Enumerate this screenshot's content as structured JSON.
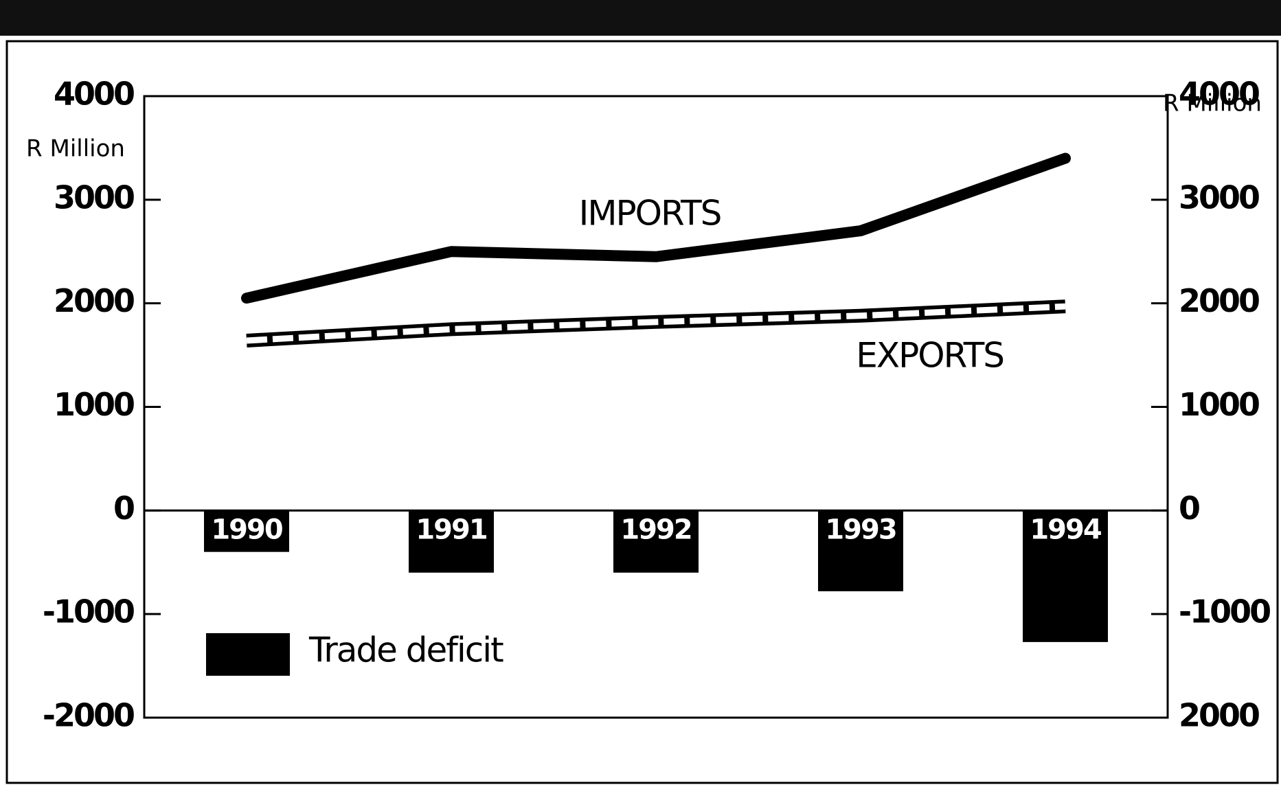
{
  "chart_data": {
    "type": "line",
    "y_label": "R Million",
    "y2_label": "R Million",
    "categories": [
      "1990",
      "1991",
      "1992",
      "1993",
      "1994"
    ],
    "series": [
      {
        "name": "IMPORTS",
        "color": "#000000",
        "values": [
          2050,
          2500,
          2450,
          2700,
          3400
        ]
      },
      {
        "name": "EXPORTS",
        "color": "#ffffff",
        "values": [
          1640,
          1750,
          1820,
          1880,
          1970
        ]
      },
      {
        "name": "Trade deficit",
        "type": "bar",
        "color": "#000000",
        "values": [
          -400,
          -600,
          -600,
          -780,
          -1270
        ]
      }
    ],
    "ylim": [
      -2000,
      4000
    ],
    "yticks": [
      -2000,
      -1000,
      0,
      1000,
      2000,
      3000,
      4000
    ],
    "y2lim": [
      -2000,
      4000
    ],
    "y2ticks": [
      {
        "value": -2000,
        "label": "2000"
      },
      -1000,
      0,
      1000,
      2000,
      3000,
      4000
    ]
  }
}
